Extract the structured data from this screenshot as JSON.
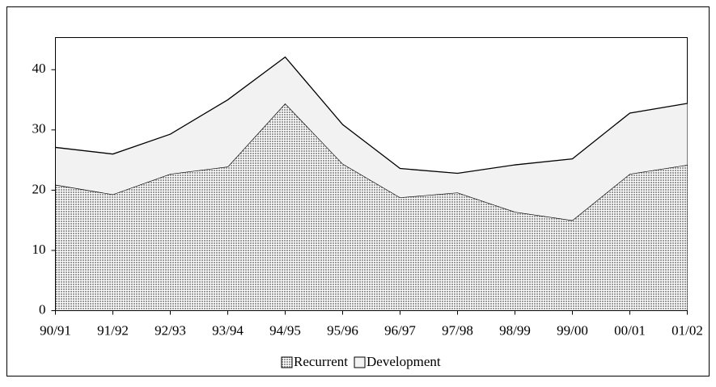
{
  "chart_data": {
    "type": "stacked-area",
    "categories": [
      "90/91",
      "91/92",
      "92/93",
      "93/94",
      "94/95",
      "95/96",
      "96/97",
      "97/98",
      "98/99",
      "99/00",
      "00/01",
      "01/02"
    ],
    "series": [
      {
        "name": "Recurrent",
        "color": "#9a9a9a",
        "values": [
          20.9,
          19.3,
          22.7,
          23.9,
          34.4,
          24.4,
          18.8,
          19.6,
          16.4,
          15.0,
          22.7,
          24.2
        ]
      },
      {
        "name": "Development",
        "color": "#f2f2f2",
        "values": [
          6.2,
          6.7,
          6.6,
          11.1,
          7.7,
          6.5,
          4.8,
          3.2,
          7.8,
          10.2,
          10.1,
          10.2
        ]
      }
    ],
    "ylim": [
      0,
      45
    ],
    "yticks": [
      0,
      10,
      20,
      30,
      40
    ],
    "legend": "bottom"
  }
}
